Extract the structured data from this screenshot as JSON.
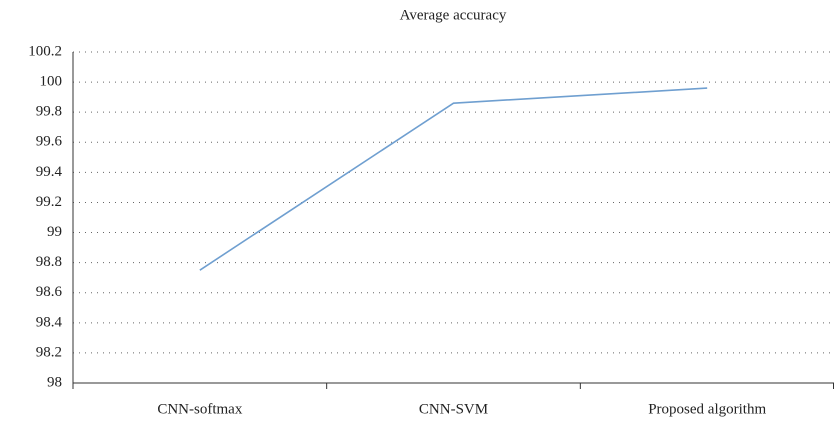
{
  "chart_data": {
    "type": "line",
    "title": "Average accuracy",
    "categories": [
      "CNN-softmax",
      "CNN-SVM",
      "Proposed algorithm"
    ],
    "series": [
      {
        "name": "Average accuracy",
        "color": "#6f9fd0",
        "values": [
          98.75,
          99.86,
          99.96
        ]
      }
    ],
    "ylim": [
      98,
      100.2
    ],
    "yticks": [
      98,
      98.2,
      98.4,
      98.6,
      98.8,
      99,
      99.2,
      99.4,
      99.6,
      99.8,
      100,
      100.2
    ],
    "grid": true
  }
}
